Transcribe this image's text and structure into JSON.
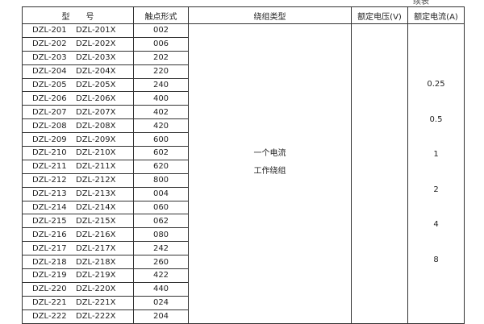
{
  "continued_label": "续表",
  "headers": {
    "model": "型　　号",
    "contact": "触点形式",
    "winding": "绕组类型",
    "voltage": "额定电压(V)",
    "current": "额定电流(A)"
  },
  "rows": [
    [
      "DZL-201",
      "DZL-201X",
      "002"
    ],
    [
      "DZL-202",
      "DZL-202X",
      "006"
    ],
    [
      "DZL-203",
      "DZL-203X",
      "202"
    ],
    [
      "DZL-204",
      "DZL-204X",
      "220"
    ],
    [
      "DZL-205",
      "DZL-205X",
      "240"
    ],
    [
      "DZL-206",
      "DZL-206X",
      "400"
    ],
    [
      "DZL-207",
      "DZL-207X",
      "402"
    ],
    [
      "DZL-208",
      "DZL-208X",
      "420"
    ],
    [
      "DZL-209",
      "DZL-209X",
      "600"
    ],
    [
      "DZL-210",
      "DZL-210X",
      "602"
    ],
    [
      "DZL-211",
      "DZL-211X",
      "620"
    ],
    [
      "DZL-212",
      "DZL-212X",
      "800"
    ],
    [
      "DZL-213",
      "DZL-213X",
      "004"
    ],
    [
      "DZL-214",
      "DZL-214X",
      "060"
    ],
    [
      "DZL-215",
      "DZL-215X",
      "062"
    ],
    [
      "DZL-216",
      "DZL-216X",
      "080"
    ],
    [
      "DZL-217",
      "DZL-217X",
      "242"
    ],
    [
      "DZL-218",
      "DZL-218X",
      "260"
    ],
    [
      "DZL-219",
      "DZL-219X",
      "422"
    ],
    [
      "DZL-220",
      "DZL-220X",
      "440"
    ],
    [
      "DZL-221",
      "DZL-221X",
      "024"
    ],
    [
      "DZL-222",
      "DZL-222X",
      "204"
    ]
  ],
  "winding": [
    "一个电流",
    "工作绕组"
  ],
  "voltage": "",
  "currents": [
    "0.25",
    "0.5",
    "1",
    "2",
    "4",
    "8"
  ]
}
